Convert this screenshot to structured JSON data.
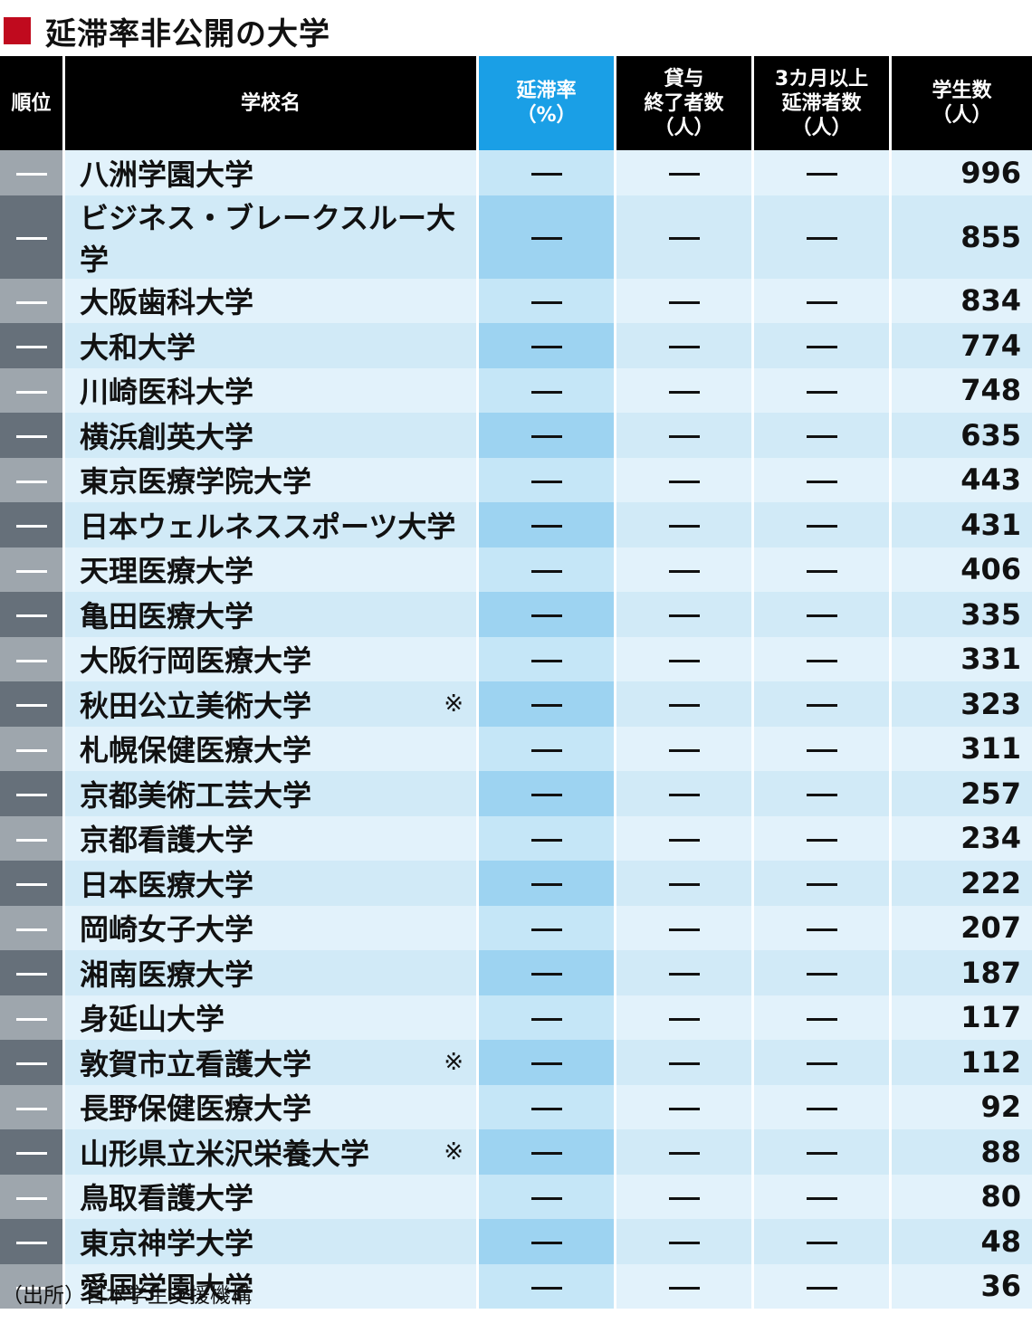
{
  "title": "延滞率非公開の大学",
  "colors": {
    "title_mark": "#c00a1e",
    "header_bg": "#000000",
    "header_highlight": "#1a9fe6"
  },
  "table": {
    "headers": {
      "rank": "順位",
      "school": "学校名",
      "delinquency_rate": [
        "延滞率",
        "（%）"
      ],
      "loan_completed": [
        "貸与",
        "終了者数",
        "（人）"
      ],
      "delinquent_3m": [
        "3カ月以上",
        "延滞者数",
        "（人）"
      ],
      "students": [
        "学生数",
        "（人）"
      ]
    },
    "rows": [
      {
        "rank": "—",
        "school": "八洲学園大学",
        "note": "",
        "rate": "—",
        "completed": "—",
        "delinquent": "—",
        "students": "996"
      },
      {
        "rank": "—",
        "school": "ビジネス・ブレークスルー大学",
        "note": "",
        "rate": "—",
        "completed": "—",
        "delinquent": "—",
        "students": "855"
      },
      {
        "rank": "—",
        "school": "大阪歯科大学",
        "note": "",
        "rate": "—",
        "completed": "—",
        "delinquent": "—",
        "students": "834"
      },
      {
        "rank": "—",
        "school": "大和大学",
        "note": "",
        "rate": "—",
        "completed": "—",
        "delinquent": "—",
        "students": "774"
      },
      {
        "rank": "—",
        "school": "川崎医科大学",
        "note": "",
        "rate": "—",
        "completed": "—",
        "delinquent": "—",
        "students": "748"
      },
      {
        "rank": "—",
        "school": "横浜創英大学",
        "note": "",
        "rate": "—",
        "completed": "—",
        "delinquent": "—",
        "students": "635"
      },
      {
        "rank": "—",
        "school": "東京医療学院大学",
        "note": "",
        "rate": "—",
        "completed": "—",
        "delinquent": "—",
        "students": "443"
      },
      {
        "rank": "—",
        "school": "日本ウェルネススポーツ大学",
        "note": "",
        "rate": "—",
        "completed": "—",
        "delinquent": "—",
        "students": "431"
      },
      {
        "rank": "—",
        "school": "天理医療大学",
        "note": "",
        "rate": "—",
        "completed": "—",
        "delinquent": "—",
        "students": "406"
      },
      {
        "rank": "—",
        "school": "亀田医療大学",
        "note": "",
        "rate": "—",
        "completed": "—",
        "delinquent": "—",
        "students": "335"
      },
      {
        "rank": "—",
        "school": "大阪行岡医療大学",
        "note": "",
        "rate": "—",
        "completed": "—",
        "delinquent": "—",
        "students": "331"
      },
      {
        "rank": "—",
        "school": "秋田公立美術大学",
        "note": "※",
        "rate": "—",
        "completed": "—",
        "delinquent": "—",
        "students": "323"
      },
      {
        "rank": "—",
        "school": "札幌保健医療大学",
        "note": "",
        "rate": "—",
        "completed": "—",
        "delinquent": "—",
        "students": "311"
      },
      {
        "rank": "—",
        "school": "京都美術工芸大学",
        "note": "",
        "rate": "—",
        "completed": "—",
        "delinquent": "—",
        "students": "257"
      },
      {
        "rank": "—",
        "school": "京都看護大学",
        "note": "",
        "rate": "—",
        "completed": "—",
        "delinquent": "—",
        "students": "234"
      },
      {
        "rank": "—",
        "school": "日本医療大学",
        "note": "",
        "rate": "—",
        "completed": "—",
        "delinquent": "—",
        "students": "222"
      },
      {
        "rank": "—",
        "school": "岡崎女子大学",
        "note": "",
        "rate": "—",
        "completed": "—",
        "delinquent": "—",
        "students": "207"
      },
      {
        "rank": "—",
        "school": "湘南医療大学",
        "note": "",
        "rate": "—",
        "completed": "—",
        "delinquent": "—",
        "students": "187"
      },
      {
        "rank": "—",
        "school": "身延山大学",
        "note": "",
        "rate": "—",
        "completed": "—",
        "delinquent": "—",
        "students": "117"
      },
      {
        "rank": "—",
        "school": "敦賀市立看護大学",
        "note": "※",
        "rate": "—",
        "completed": "—",
        "delinquent": "—",
        "students": "112"
      },
      {
        "rank": "—",
        "school": "長野保健医療大学",
        "note": "",
        "rate": "—",
        "completed": "—",
        "delinquent": "—",
        "students": "92"
      },
      {
        "rank": "—",
        "school": "山形県立米沢栄養大学",
        "note": "※",
        "rate": "—",
        "completed": "—",
        "delinquent": "—",
        "students": "88"
      },
      {
        "rank": "—",
        "school": "鳥取看護大学",
        "note": "",
        "rate": "—",
        "completed": "—",
        "delinquent": "—",
        "students": "80"
      },
      {
        "rank": "—",
        "school": "東京神学大学",
        "note": "",
        "rate": "—",
        "completed": "—",
        "delinquent": "—",
        "students": "48"
      },
      {
        "rank": "—",
        "school": "愛国学園大学",
        "note": "",
        "rate": "—",
        "completed": "—",
        "delinquent": "—",
        "students": "36"
      }
    ]
  },
  "source": "（出所）日本学生支援機構"
}
